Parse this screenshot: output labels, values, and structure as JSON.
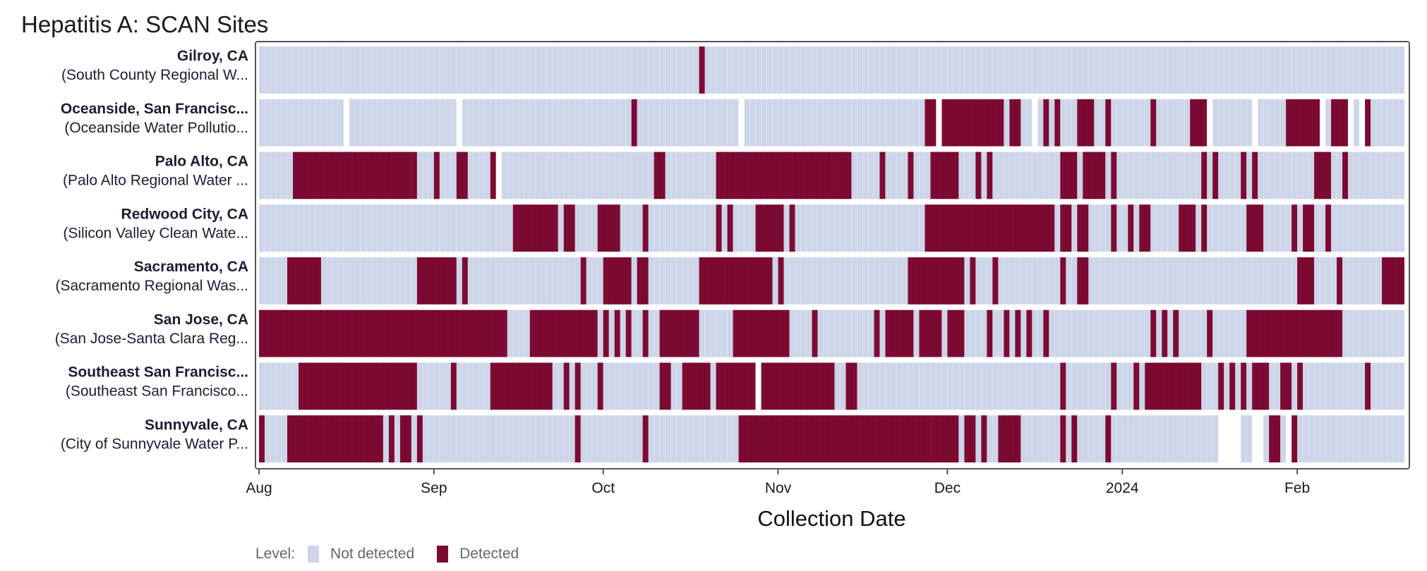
{
  "chart_data": {
    "type": "heatmap",
    "title": "Hepatitis A: SCAN Sites",
    "xlabel": "Collection Date",
    "x_ticks": [
      "Aug",
      "Sep",
      "Oct",
      "Nov",
      "Dec",
      "2024",
      "Feb"
    ],
    "x_tick_dates": [
      "2023-08-01",
      "2023-09-01",
      "2023-10-01",
      "2023-11-01",
      "2023-12-01",
      "2024-01-01",
      "2024-02-01"
    ],
    "x_range": [
      "2023-08-01",
      "2024-02-19"
    ],
    "legend": {
      "title": "Level:",
      "position": "bottom",
      "items": [
        {
          "label": "Not detected",
          "color": "#cdd5ea"
        },
        {
          "label": "Detected",
          "color": "#7d0a33"
        }
      ]
    },
    "sites": [
      {
        "name": "Gilroy, CA",
        "plant": "(South County Regional W...",
        "detected": [
          [
            "2023-10-18",
            "2023-10-18"
          ]
        ],
        "no_data": []
      },
      {
        "name": "Oceanside, San Francisc...",
        "plant": "(Oceanside Water Pollutio...",
        "detected": [
          [
            "2023-10-06",
            "2023-10-06"
          ],
          [
            "2023-11-27",
            "2023-11-28"
          ],
          [
            "2023-11-30",
            "2023-12-10"
          ],
          [
            "2023-12-12",
            "2023-12-13"
          ],
          [
            "2023-12-18",
            "2023-12-18"
          ],
          [
            "2023-12-20",
            "2023-12-20"
          ],
          [
            "2023-12-24",
            "2023-12-26"
          ],
          [
            "2023-12-29",
            "2023-12-29"
          ],
          [
            "2024-01-06",
            "2024-01-06"
          ],
          [
            "2024-01-13",
            "2024-01-15"
          ],
          [
            "2024-01-30",
            "2024-02-04"
          ],
          [
            "2024-02-07",
            "2024-02-09"
          ],
          [
            "2024-02-13",
            "2024-02-13"
          ]
        ],
        "no_data": [
          [
            "2023-08-16",
            "2023-08-16"
          ],
          [
            "2023-09-05",
            "2023-09-05"
          ],
          [
            "2023-10-25",
            "2023-10-25"
          ],
          [
            "2023-11-29",
            "2023-11-29"
          ],
          [
            "2023-12-16",
            "2023-12-16"
          ],
          [
            "2024-01-16",
            "2024-01-16"
          ],
          [
            "2024-01-24",
            "2024-01-24"
          ],
          [
            "2024-02-05",
            "2024-02-05"
          ],
          [
            "2024-02-10",
            "2024-02-10"
          ],
          [
            "2024-02-12",
            "2024-02-12"
          ]
        ]
      },
      {
        "name": "Palo Alto, CA",
        "plant": "(Palo Alto Regional Water ...",
        "detected": [
          [
            "2023-08-07",
            "2023-08-27"
          ],
          [
            "2023-08-28",
            "2023-08-28"
          ],
          [
            "2023-09-01",
            "2023-09-01"
          ],
          [
            "2023-09-05",
            "2023-09-06"
          ],
          [
            "2023-09-11",
            "2023-09-11"
          ],
          [
            "2023-10-10",
            "2023-10-11"
          ],
          [
            "2023-10-21",
            "2023-11-10"
          ],
          [
            "2023-11-11",
            "2023-11-13"
          ],
          [
            "2023-11-19",
            "2023-11-19"
          ],
          [
            "2023-11-24",
            "2023-11-24"
          ],
          [
            "2023-11-28",
            "2023-12-02"
          ],
          [
            "2023-12-06",
            "2023-12-06"
          ],
          [
            "2023-12-08",
            "2023-12-08"
          ],
          [
            "2023-12-21",
            "2023-12-23"
          ],
          [
            "2023-12-25",
            "2023-12-28"
          ],
          [
            "2023-12-30",
            "2023-12-30"
          ],
          [
            "2024-01-15",
            "2024-01-15"
          ],
          [
            "2024-01-17",
            "2024-01-17"
          ],
          [
            "2024-01-22",
            "2024-01-22"
          ],
          [
            "2024-01-24",
            "2024-01-24"
          ],
          [
            "2024-02-04",
            "2024-02-06"
          ],
          [
            "2024-02-09",
            "2024-02-09"
          ]
        ],
        "no_data": [
          [
            "2023-09-12",
            "2023-09-12"
          ]
        ]
      },
      {
        "name": "Redwood City, CA",
        "plant": "(Silicon Valley Clean Wate...",
        "detected": [
          [
            "2023-09-15",
            "2023-09-22"
          ],
          [
            "2023-09-24",
            "2023-09-25"
          ],
          [
            "2023-09-30",
            "2023-10-03"
          ],
          [
            "2023-10-08",
            "2023-10-08"
          ],
          [
            "2023-10-21",
            "2023-10-21"
          ],
          [
            "2023-10-23",
            "2023-10-23"
          ],
          [
            "2023-10-28",
            "2023-11-01"
          ],
          [
            "2023-11-03",
            "2023-11-03"
          ],
          [
            "2023-11-27",
            "2023-12-19"
          ],
          [
            "2023-12-21",
            "2023-12-22"
          ],
          [
            "2023-12-24",
            "2023-12-25"
          ],
          [
            "2023-12-30",
            "2023-12-30"
          ],
          [
            "2024-01-02",
            "2024-01-02"
          ],
          [
            "2024-01-04",
            "2024-01-05"
          ],
          [
            "2024-01-11",
            "2024-01-13"
          ],
          [
            "2024-01-15",
            "2024-01-15"
          ],
          [
            "2024-01-23",
            "2024-01-25"
          ],
          [
            "2024-01-31",
            "2024-01-31"
          ],
          [
            "2024-02-02",
            "2024-02-03"
          ],
          [
            "2024-02-06",
            "2024-02-06"
          ]
        ],
        "no_data": []
      },
      {
        "name": "Sacramento, CA",
        "plant": "(Sacramento Regional Was...",
        "detected": [
          [
            "2023-08-06",
            "2023-08-11"
          ],
          [
            "2023-08-29",
            "2023-09-04"
          ],
          [
            "2023-09-06",
            "2023-09-06"
          ],
          [
            "2023-09-27",
            "2023-09-27"
          ],
          [
            "2023-10-01",
            "2023-10-05"
          ],
          [
            "2023-10-07",
            "2023-10-08"
          ],
          [
            "2023-10-18",
            "2023-10-30"
          ],
          [
            "2023-11-01",
            "2023-11-01"
          ],
          [
            "2023-11-24",
            "2023-12-03"
          ],
          [
            "2023-12-05",
            "2023-12-05"
          ],
          [
            "2023-12-09",
            "2023-12-09"
          ],
          [
            "2023-12-21",
            "2023-12-21"
          ],
          [
            "2023-12-24",
            "2023-12-25"
          ],
          [
            "2024-02-01",
            "2024-02-03"
          ],
          [
            "2024-02-08",
            "2024-02-08"
          ],
          [
            "2024-02-16",
            "2024-02-19"
          ]
        ],
        "no_data": []
      },
      {
        "name": "San Jose, CA",
        "plant": "(San Jose-Santa Clara Reg...",
        "detected": [
          [
            "2023-08-01",
            "2023-09-13"
          ],
          [
            "2023-09-18",
            "2023-09-29"
          ],
          [
            "2023-10-01",
            "2023-10-01"
          ],
          [
            "2023-10-03",
            "2023-10-03"
          ],
          [
            "2023-10-05",
            "2023-10-05"
          ],
          [
            "2023-10-08",
            "2023-10-08"
          ],
          [
            "2023-10-11",
            "2023-10-17"
          ],
          [
            "2023-10-24",
            "2023-11-02"
          ],
          [
            "2023-11-07",
            "2023-11-07"
          ],
          [
            "2023-11-18",
            "2023-11-18"
          ],
          [
            "2023-11-20",
            "2023-11-24"
          ],
          [
            "2023-11-26",
            "2023-11-29"
          ],
          [
            "2023-12-01",
            "2023-12-03"
          ],
          [
            "2023-12-08",
            "2023-12-08"
          ],
          [
            "2023-12-11",
            "2023-12-11"
          ],
          [
            "2023-12-13",
            "2023-12-13"
          ],
          [
            "2023-12-15",
            "2023-12-15"
          ],
          [
            "2023-12-18",
            "2023-12-18"
          ],
          [
            "2024-01-06",
            "2024-01-06"
          ],
          [
            "2024-01-08",
            "2024-01-08"
          ],
          [
            "2024-01-10",
            "2024-01-10"
          ],
          [
            "2024-01-16",
            "2024-01-16"
          ],
          [
            "2024-01-23",
            "2024-02-08"
          ]
        ],
        "no_data": []
      },
      {
        "name": "Southeast San Francisc...",
        "plant": "(Southeast San Francisco...",
        "detected": [
          [
            "2023-08-08",
            "2023-08-28"
          ],
          [
            "2023-09-04",
            "2023-09-04"
          ],
          [
            "2023-09-11",
            "2023-09-21"
          ],
          [
            "2023-09-24",
            "2023-09-24"
          ],
          [
            "2023-09-26",
            "2023-09-26"
          ],
          [
            "2023-09-30",
            "2023-09-30"
          ],
          [
            "2023-10-11",
            "2023-10-12"
          ],
          [
            "2023-10-15",
            "2023-10-19"
          ],
          [
            "2023-10-21",
            "2023-10-27"
          ],
          [
            "2023-10-29",
            "2023-11-10"
          ],
          [
            "2023-11-13",
            "2023-11-14"
          ],
          [
            "2023-12-21",
            "2023-12-21"
          ],
          [
            "2023-12-30",
            "2023-12-30"
          ],
          [
            "2024-01-03",
            "2024-01-03"
          ],
          [
            "2024-01-05",
            "2024-01-14"
          ],
          [
            "2024-01-18",
            "2024-01-18"
          ],
          [
            "2024-01-20",
            "2024-01-20"
          ],
          [
            "2024-01-22",
            "2024-01-22"
          ],
          [
            "2024-01-24",
            "2024-01-26"
          ],
          [
            "2024-01-29",
            "2024-01-30"
          ],
          [
            "2024-02-01",
            "2024-02-01"
          ],
          [
            "2024-02-13",
            "2024-02-13"
          ]
        ],
        "no_data": [
          [
            "2023-10-28",
            "2023-10-28"
          ]
        ]
      },
      {
        "name": "Sunnyvale, CA",
        "plant": "(City of Sunnyvale Water P...",
        "detected": [
          [
            "2023-08-01",
            "2023-08-01"
          ],
          [
            "2023-08-06",
            "2023-08-22"
          ],
          [
            "2023-08-24",
            "2023-08-24"
          ],
          [
            "2023-08-26",
            "2023-08-27"
          ],
          [
            "2023-08-29",
            "2023-08-29"
          ],
          [
            "2023-09-26",
            "2023-09-26"
          ],
          [
            "2023-10-08",
            "2023-10-08"
          ],
          [
            "2023-10-25",
            "2023-11-27"
          ],
          [
            "2023-11-28",
            "2023-12-02"
          ],
          [
            "2023-12-04",
            "2023-12-05"
          ],
          [
            "2023-12-07",
            "2023-12-07"
          ],
          [
            "2023-12-10",
            "2023-12-13"
          ],
          [
            "2023-12-21",
            "2023-12-21"
          ],
          [
            "2023-12-23",
            "2023-12-23"
          ],
          [
            "2023-12-29",
            "2023-12-29"
          ],
          [
            "2024-01-27",
            "2024-01-28"
          ],
          [
            "2024-01-31",
            "2024-01-31"
          ]
        ],
        "no_data": [
          [
            "2024-01-18",
            "2024-01-21"
          ],
          [
            "2024-01-24",
            "2024-01-25"
          ],
          [
            "2024-01-30",
            "2024-01-30"
          ]
        ]
      }
    ]
  }
}
